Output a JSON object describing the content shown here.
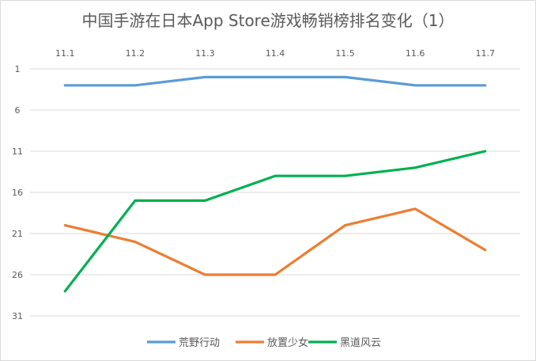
{
  "chart_data": {
    "type": "line",
    "title": "中国手游在日本App Store游戏畅销榜排名变化（1）",
    "categories": [
      "11.1",
      "11.2",
      "11.3",
      "11.4",
      "11.5",
      "11.6",
      "11.7"
    ],
    "y_ticks": [
      "1",
      "6",
      "11",
      "16",
      "21",
      "26",
      "31"
    ],
    "ylim": [
      1,
      31
    ],
    "y_inverted": true,
    "x_axis_position": "top",
    "grid": true,
    "legend_position": "bottom",
    "series": [
      {
        "name": "荒野行动",
        "color": "#5b9bd5",
        "values": [
          3,
          3,
          2,
          2,
          2,
          3,
          3
        ]
      },
      {
        "name": "放置少女",
        "color": "#ed7d31",
        "values": [
          20,
          22,
          26,
          26,
          20,
          18,
          23
        ]
      },
      {
        "name": "黑道风云",
        "color": "#00b050",
        "values": [
          28,
          17,
          17,
          14,
          14,
          13,
          11
        ]
      }
    ]
  }
}
